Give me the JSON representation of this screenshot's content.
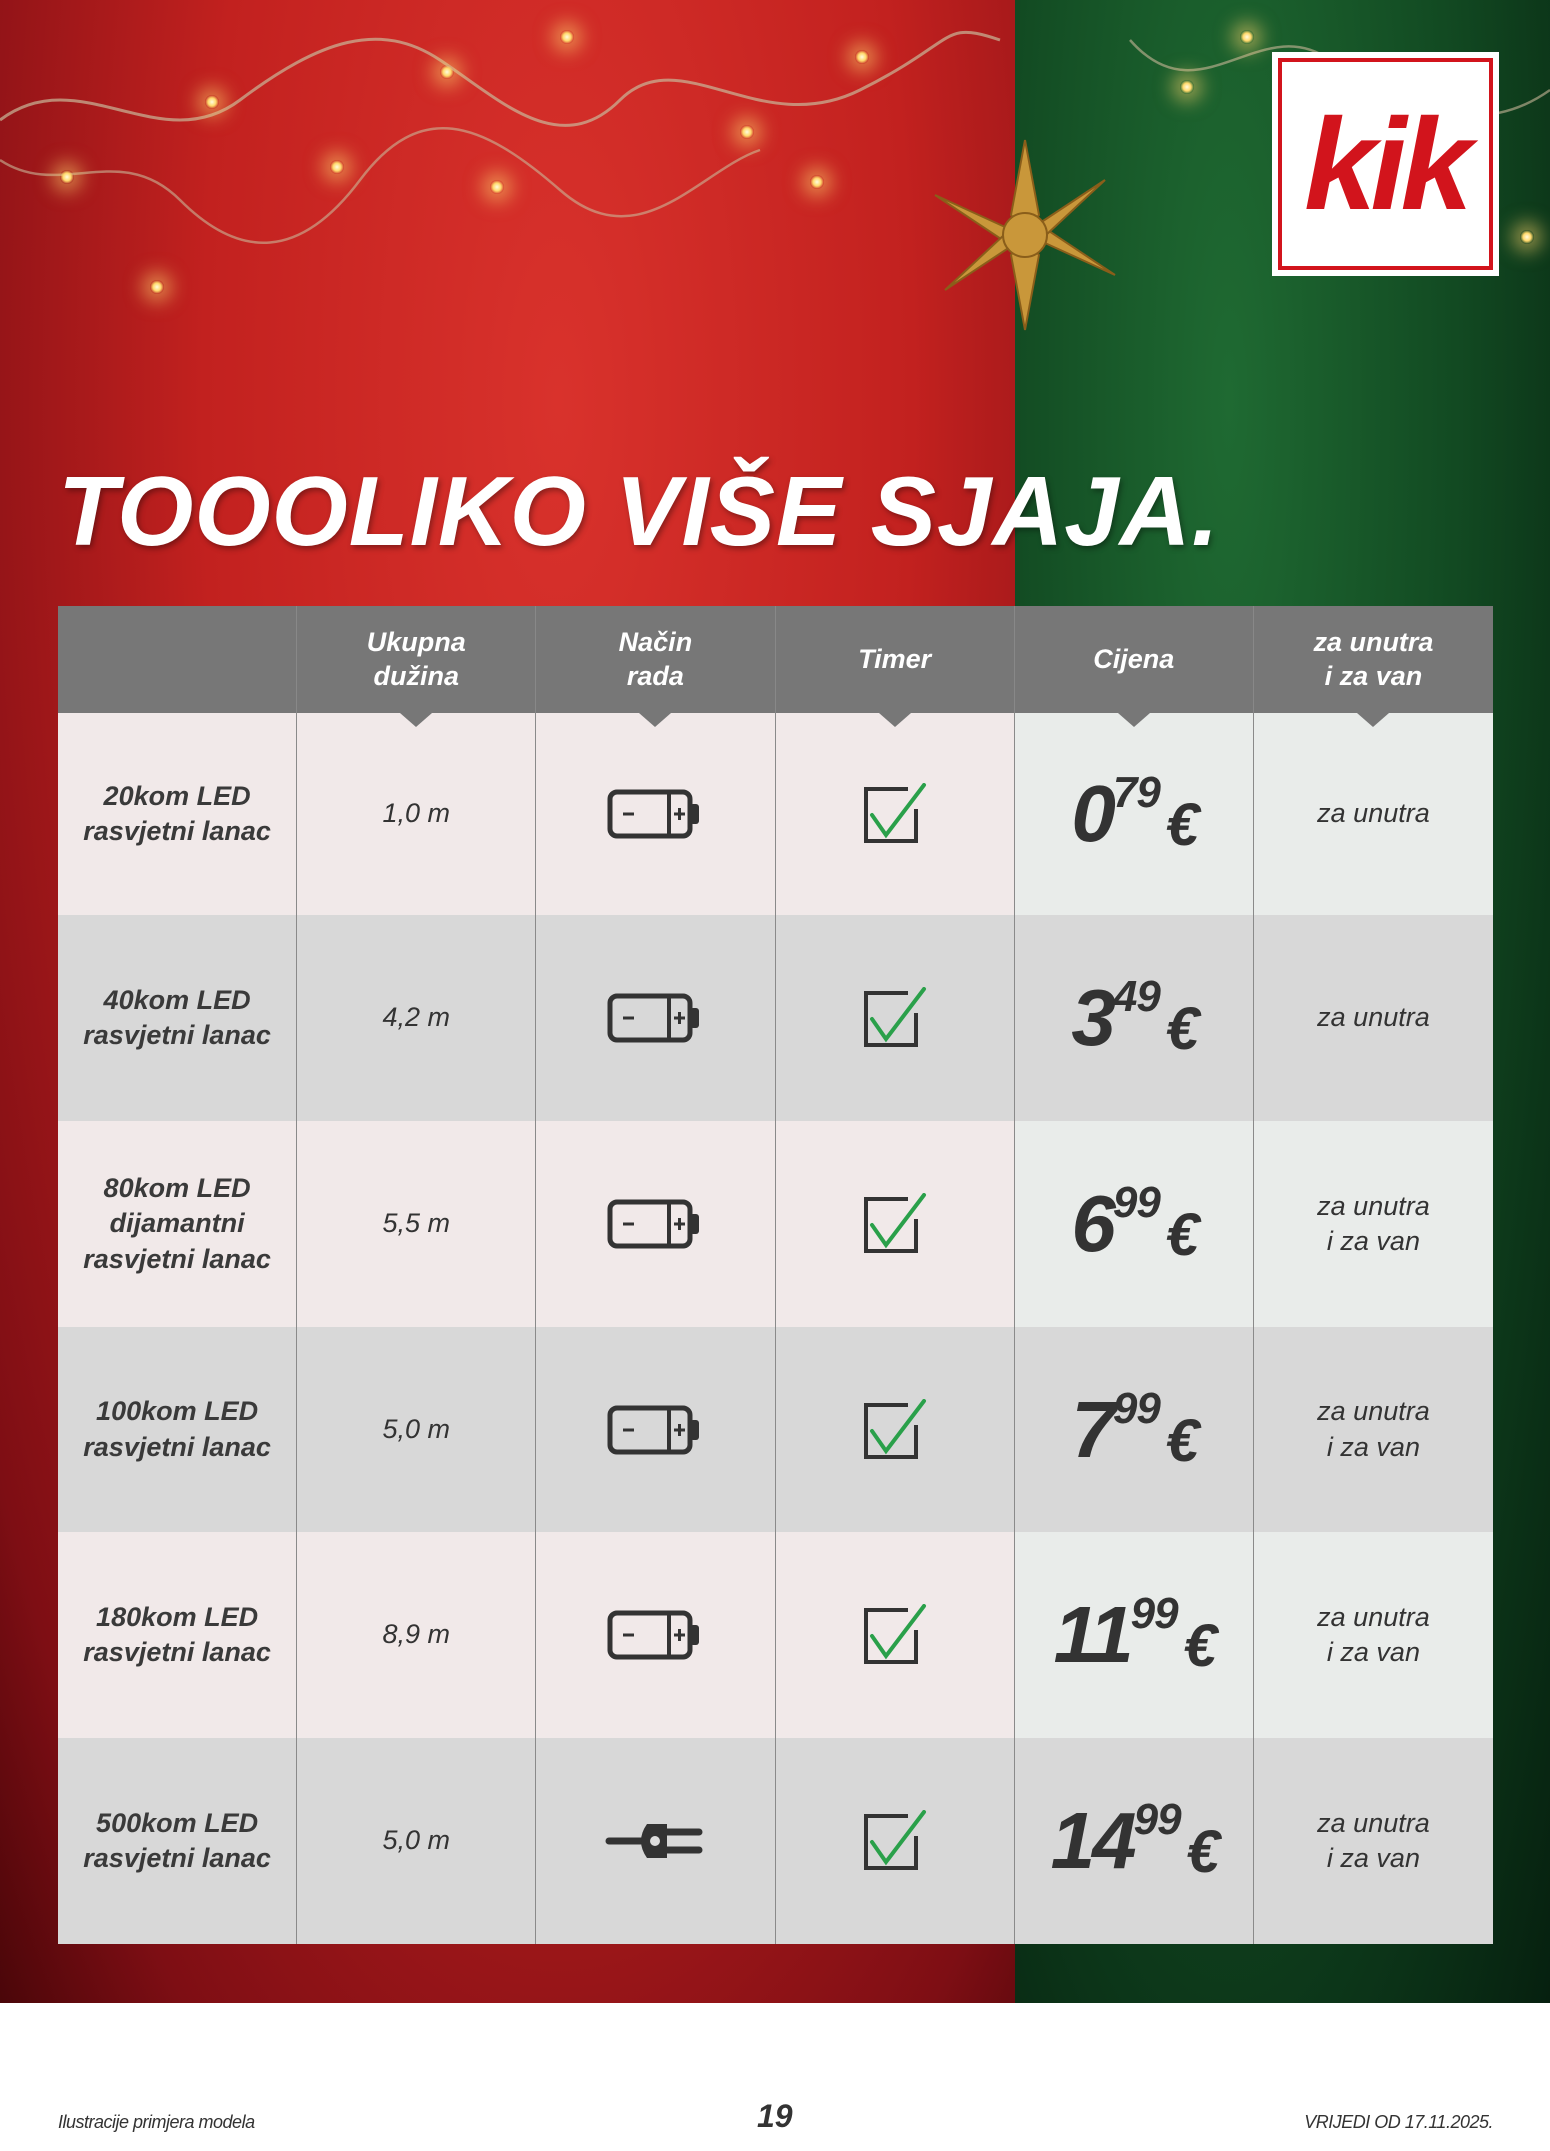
{
  "brand": {
    "logo_text": "kik",
    "brand_color": "#d2141c"
  },
  "headline": "TOOOLIKO VIŠE SJAJA.",
  "table": {
    "headers": [
      "",
      "Ukupna\ndužina",
      "Način\nrada",
      "Timer",
      "Cijena",
      "za unutra\ni za van"
    ],
    "rows": [
      {
        "name": "20kom LED\nrasvjetni lanac",
        "length": "1,0 m",
        "power": "battery-icon",
        "timer": true,
        "price_main": "0",
        "price_cents": "79",
        "currency": "€",
        "use": "za unutra"
      },
      {
        "name": "40kom LED\nrasvjetni lanac",
        "length": "4,2 m",
        "power": "battery-icon",
        "timer": true,
        "price_main": "3",
        "price_cents": "49",
        "currency": "€",
        "use": "za unutra"
      },
      {
        "name": "80kom LED\ndijamantni\nrasvjetni lanac",
        "length": "5,5 m",
        "power": "battery-icon",
        "timer": true,
        "price_main": "6",
        "price_cents": "99",
        "currency": "€",
        "use": "za unutra\ni za van"
      },
      {
        "name": "100kom LED\nrasvjetni lanac",
        "length": "5,0 m",
        "power": "battery-icon",
        "timer": true,
        "price_main": "7",
        "price_cents": "99",
        "currency": "€",
        "use": "za unutra\ni za van"
      },
      {
        "name": "180kom LED\nrasvjetni lanac",
        "length": "8,9 m",
        "power": "battery-icon",
        "timer": true,
        "price_main": "11",
        "price_cents": "99",
        "currency": "€",
        "use": "za unutra\ni za van"
      },
      {
        "name": "500kom LED\nrasvjetni lanac",
        "length": "5,0 m",
        "power": "plug-icon",
        "timer": true,
        "price_main": "14",
        "price_cents": "99",
        "currency": "€",
        "use": "za unutra\ni za van"
      }
    ]
  },
  "footer": {
    "left": "Ilustracije primjera modela",
    "page": "19",
    "right": "VRIJEDI OD 17.11.2025."
  },
  "colors": {
    "red_bg": "#c2211f",
    "green_bg": "#124a22",
    "header_gray": "#777777",
    "check_green": "#2aa04a"
  }
}
